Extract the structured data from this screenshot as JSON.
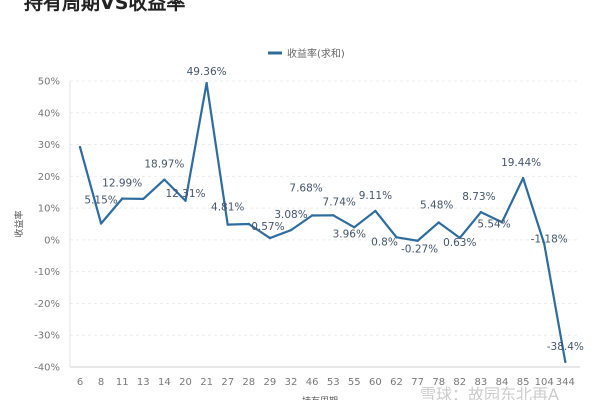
{
  "chart_data": {
    "type": "line",
    "title": "持有周期VS收益率",
    "xlabel": "持有周期",
    "ylabel": "收益率",
    "legend": {
      "entries": [
        "收益率(求和)"
      ],
      "placement": "top-right"
    },
    "ylim": [
      -40,
      50
    ],
    "yticks": [
      "50%",
      "40%",
      "30%",
      "20%",
      "10%",
      "0%",
      "-10%",
      "-20%",
      "-30%",
      "-40%"
    ],
    "grid": "horizontal dashed",
    "line_color": "#2e6c9e",
    "categories": [
      "6",
      "8",
      "11",
      "13",
      "14",
      "20",
      "21",
      "27",
      "28",
      "29",
      "32",
      "46",
      "53",
      "55",
      "60",
      "62",
      "77",
      "78",
      "82",
      "83",
      "84",
      "85",
      "104",
      "344"
    ],
    "series": [
      {
        "name": "收益率(求和)",
        "values": [
          29.2,
          5.15,
          12.99,
          12.9,
          18.97,
          12.31,
          49.36,
          4.81,
          5.0,
          0.57,
          3.08,
          7.68,
          7.74,
          3.96,
          9.11,
          0.8,
          -0.27,
          5.48,
          0.63,
          8.73,
          5.54,
          19.44,
          -1.18,
          -38.4
        ],
        "labels": [
          "",
          "5.15%",
          "12.99%",
          "",
          "18.97%",
          "12.31%",
          "49.36%",
          "4.81%",
          "",
          "0.57%",
          "3.08%",
          "7.68%",
          "7.74%",
          "3.96%",
          "9.11%",
          "0.8%",
          "-0.27%",
          "5.48%",
          "0.63%",
          "8.73%",
          "5.54%",
          "19.44%",
          "-1.18%",
          "-38.4%"
        ]
      }
    ]
  },
  "watermark": "雪球：故园东北再A"
}
